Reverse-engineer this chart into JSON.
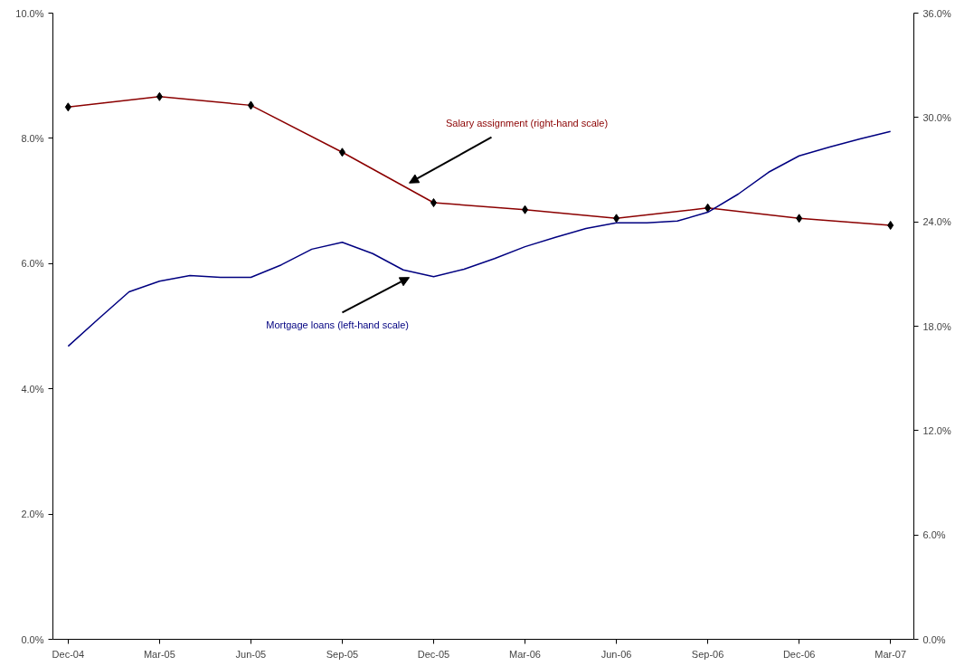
{
  "chart_data": {
    "type": "line",
    "grid": false,
    "xlim": [
      "2004-11-16",
      "2007-03-24"
    ],
    "xticks": [
      {
        "value": "2004-12",
        "label": "Dec-04"
      },
      {
        "value": "2005-03",
        "label": "Mar-05"
      },
      {
        "value": "2005-06",
        "label": "Jun-05"
      },
      {
        "value": "2005-09",
        "label": "Sep-05"
      },
      {
        "value": "2005-12",
        "label": "Dec-05"
      },
      {
        "value": "2006-03",
        "label": "Mar-06"
      },
      {
        "value": "2006-06",
        "label": "Jun-06"
      },
      {
        "value": "2006-09",
        "label": "Sep-06"
      },
      {
        "value": "2006-12",
        "label": "Dec-06"
      },
      {
        "value": "2007-03",
        "label": "Mar-07"
      }
    ],
    "ylim": [
      0,
      10
    ],
    "yticks": [
      {
        "value": 0,
        "label": "0.0%"
      },
      {
        "value": 2,
        "label": "2.0%"
      },
      {
        "value": 4,
        "label": "4.0%"
      },
      {
        "value": 6,
        "label": "6.0%"
      },
      {
        "value": 8,
        "label": "8.0%"
      },
      {
        "value": 10,
        "label": "10.0%"
      }
    ],
    "y2lim": [
      0,
      36
    ],
    "y2ticks": [
      {
        "value": 0,
        "label": "0.0%"
      },
      {
        "value": 6,
        "label": "6.0%"
      },
      {
        "value": 12,
        "label": "12.0%"
      },
      {
        "value": 18,
        "label": "18.0%"
      },
      {
        "value": 24,
        "label": "24.0%"
      },
      {
        "value": 30,
        "label": "30.0%"
      },
      {
        "value": 36,
        "label": "36.0%"
      }
    ],
    "series": [
      {
        "name": "Salary assignment (right-hand scale)",
        "color": "#8b0000",
        "axis": "y2",
        "marker": "diamond",
        "x": [
          "2004-12",
          "2005-03",
          "2005-06",
          "2005-09",
          "2005-12",
          "2006-03",
          "2006-06",
          "2006-09",
          "2006-12",
          "2007-03"
        ],
        "values": [
          30.6,
          31.2,
          30.7,
          28.0,
          25.1,
          24.7,
          24.2,
          24.8,
          24.2,
          23.8
        ]
      },
      {
        "name": "Mortgage loans (left-hand scale)",
        "color": "#000080",
        "axis": "y",
        "marker": "none",
        "x": [
          "2004-12",
          "2005-01",
          "2005-02",
          "2005-03",
          "2005-04",
          "2005-05",
          "2005-06",
          "2005-07",
          "2005-08",
          "2005-09",
          "2005-10",
          "2005-11",
          "2005-12",
          "2006-01",
          "2006-02",
          "2006-03",
          "2006-04",
          "2006-05",
          "2006-06",
          "2006-07",
          "2006-08",
          "2006-09",
          "2006-10",
          "2006-11",
          "2006-12",
          "2007-01",
          "2007-02",
          "2007-03"
        ],
        "values": [
          4.68,
          5.12,
          5.55,
          5.72,
          5.81,
          5.78,
          5.78,
          5.98,
          6.23,
          6.34,
          6.16,
          5.9,
          5.79,
          5.91,
          6.08,
          6.27,
          6.42,
          6.56,
          6.65,
          6.65,
          6.68,
          6.82,
          7.11,
          7.46,
          7.72,
          7.86,
          7.99,
          8.11
        ]
      }
    ]
  }
}
